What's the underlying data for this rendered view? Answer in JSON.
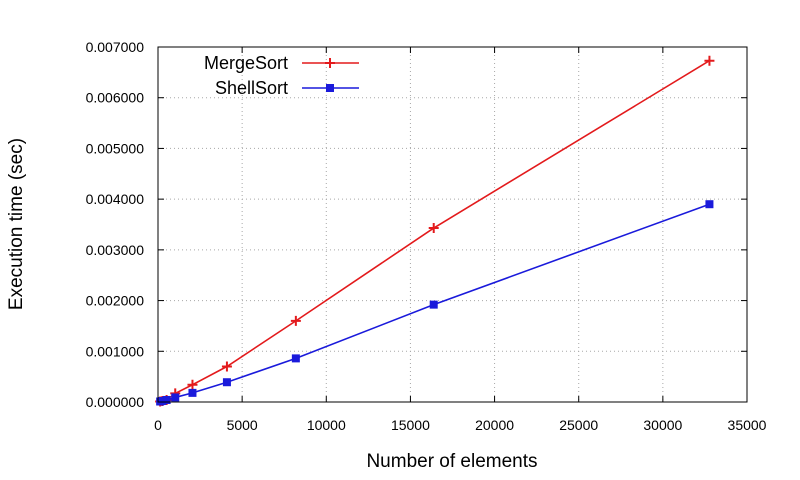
{
  "chart_data": {
    "type": "line",
    "xlabel": "Number of elements",
    "ylabel": "Execution time (sec)",
    "xlim": [
      0,
      35000
    ],
    "ylim": [
      0,
      0.007
    ],
    "xticks": [
      0,
      5000,
      10000,
      15000,
      20000,
      25000,
      30000,
      35000
    ],
    "xtick_labels": [
      "0",
      "5000",
      "10000",
      "15000",
      "20000",
      "25000",
      "30000",
      "35000"
    ],
    "yticks": [
      0,
      0.001,
      0.002,
      0.003,
      0.004,
      0.005,
      0.006,
      0.007
    ],
    "ytick_labels": [
      "0.000000",
      "0.001000",
      "0.002000",
      "0.003000",
      "0.004000",
      "0.005000",
      "0.006000",
      "0.007000"
    ],
    "grid": true,
    "legend_position": "top-left",
    "series": [
      {
        "name": "MergeSort",
        "color": "#e31a1c",
        "marker": "plus",
        "x": [
          128,
          256,
          512,
          1024,
          2048,
          4096,
          8192,
          16384,
          32768
        ],
        "y": [
          1e-05,
          2e-05,
          4e-05,
          0.00017,
          0.00034,
          0.0007,
          0.0016,
          0.00343,
          0.00673
        ]
      },
      {
        "name": "ShellSort",
        "color": "#1a1adb",
        "marker": "square",
        "x": [
          128,
          256,
          512,
          1024,
          2048,
          4096,
          8192,
          16384,
          32768
        ],
        "y": [
          1e-05,
          2e-05,
          4e-05,
          9e-05,
          0.00018,
          0.00039,
          0.00086,
          0.00192,
          0.0039
        ]
      }
    ]
  }
}
